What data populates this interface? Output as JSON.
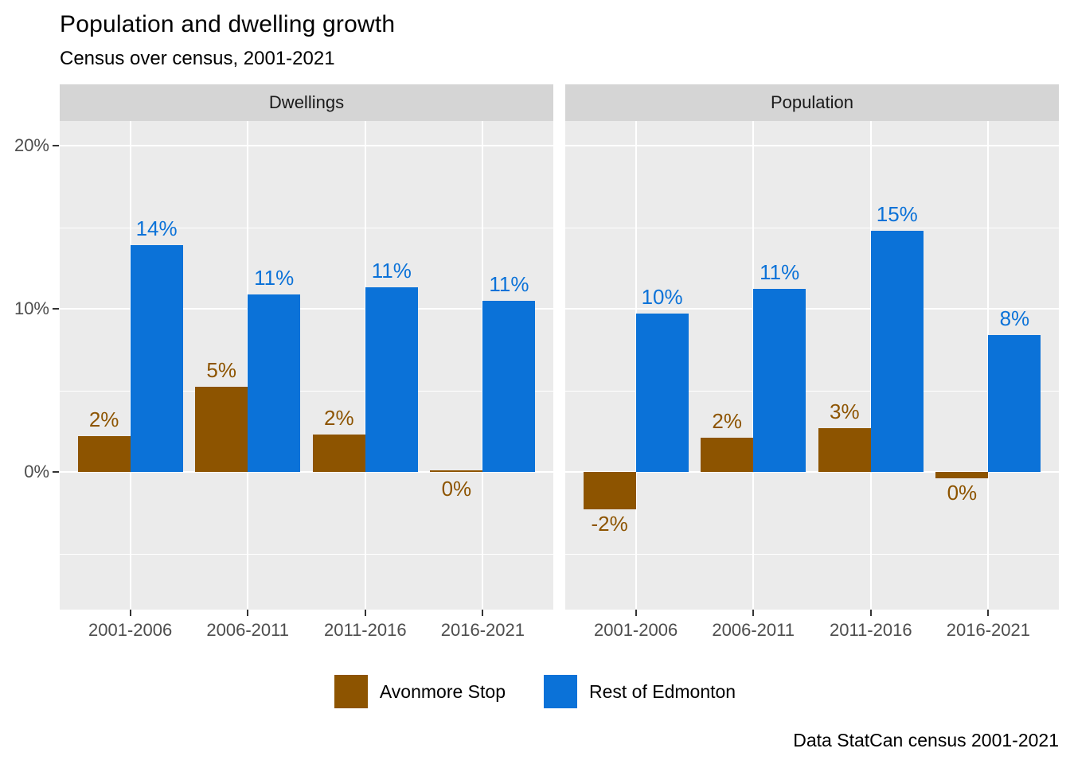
{
  "chart_data": {
    "type": "bar",
    "title": "Population and dwelling growth",
    "subtitle": "Census over census, 2001-2021",
    "caption": "Data StatCan census 2001-2021",
    "legend_position": "bottom",
    "grid": true,
    "categories": [
      "2001-2006",
      "2006-2011",
      "2011-2016",
      "2016-2021"
    ],
    "y_axis": {
      "tick_labels": [
        "20%",
        "10%",
        "0%"
      ],
      "tick_values": [
        20,
        10,
        0
      ],
      "major_gridlines": [
        20,
        10,
        0
      ],
      "minor_gridlines": [
        15,
        5,
        -5
      ],
      "ylim": [
        -8.4,
        21.5
      ]
    },
    "facets": [
      {
        "label": "Dwellings",
        "series": [
          {
            "name": "Avonmore Stop",
            "color": "#8D5400",
            "values": [
              2.2,
              5.2,
              2.3,
              0.1
            ],
            "labels": [
              "2%",
              "5%",
              "2%",
              "0%"
            ],
            "label_below": [
              false,
              false,
              false,
              true
            ]
          },
          {
            "name": "Rest of Edmonton",
            "color": "#0B72D8",
            "values": [
              13.9,
              10.9,
              11.3,
              10.5
            ],
            "labels": [
              "14%",
              "11%",
              "11%",
              "11%"
            ],
            "label_below": [
              false,
              false,
              false,
              false
            ]
          }
        ]
      },
      {
        "label": "Population",
        "series": [
          {
            "name": "Avonmore Stop",
            "color": "#8D5400",
            "values": [
              -2.3,
              2.1,
              2.7,
              -0.4
            ],
            "labels": [
              "-2%",
              "2%",
              "3%",
              "0%"
            ],
            "label_below": [
              true,
              false,
              false,
              true
            ]
          },
          {
            "name": "Rest of Edmonton",
            "color": "#0B72D8",
            "values": [
              9.7,
              11.2,
              14.8,
              8.4
            ],
            "labels": [
              "10%",
              "11%",
              "15%",
              "8%"
            ],
            "label_below": [
              false,
              false,
              false,
              false
            ]
          }
        ]
      }
    ]
  },
  "colors": {
    "panel_bg": "#EBEBEB",
    "strip_bg": "#D5D5D5",
    "grid": "#FFFFFF",
    "axis_text": "#4D4D4D",
    "tick": "#333333",
    "strip_text": "#1A1A1A"
  }
}
